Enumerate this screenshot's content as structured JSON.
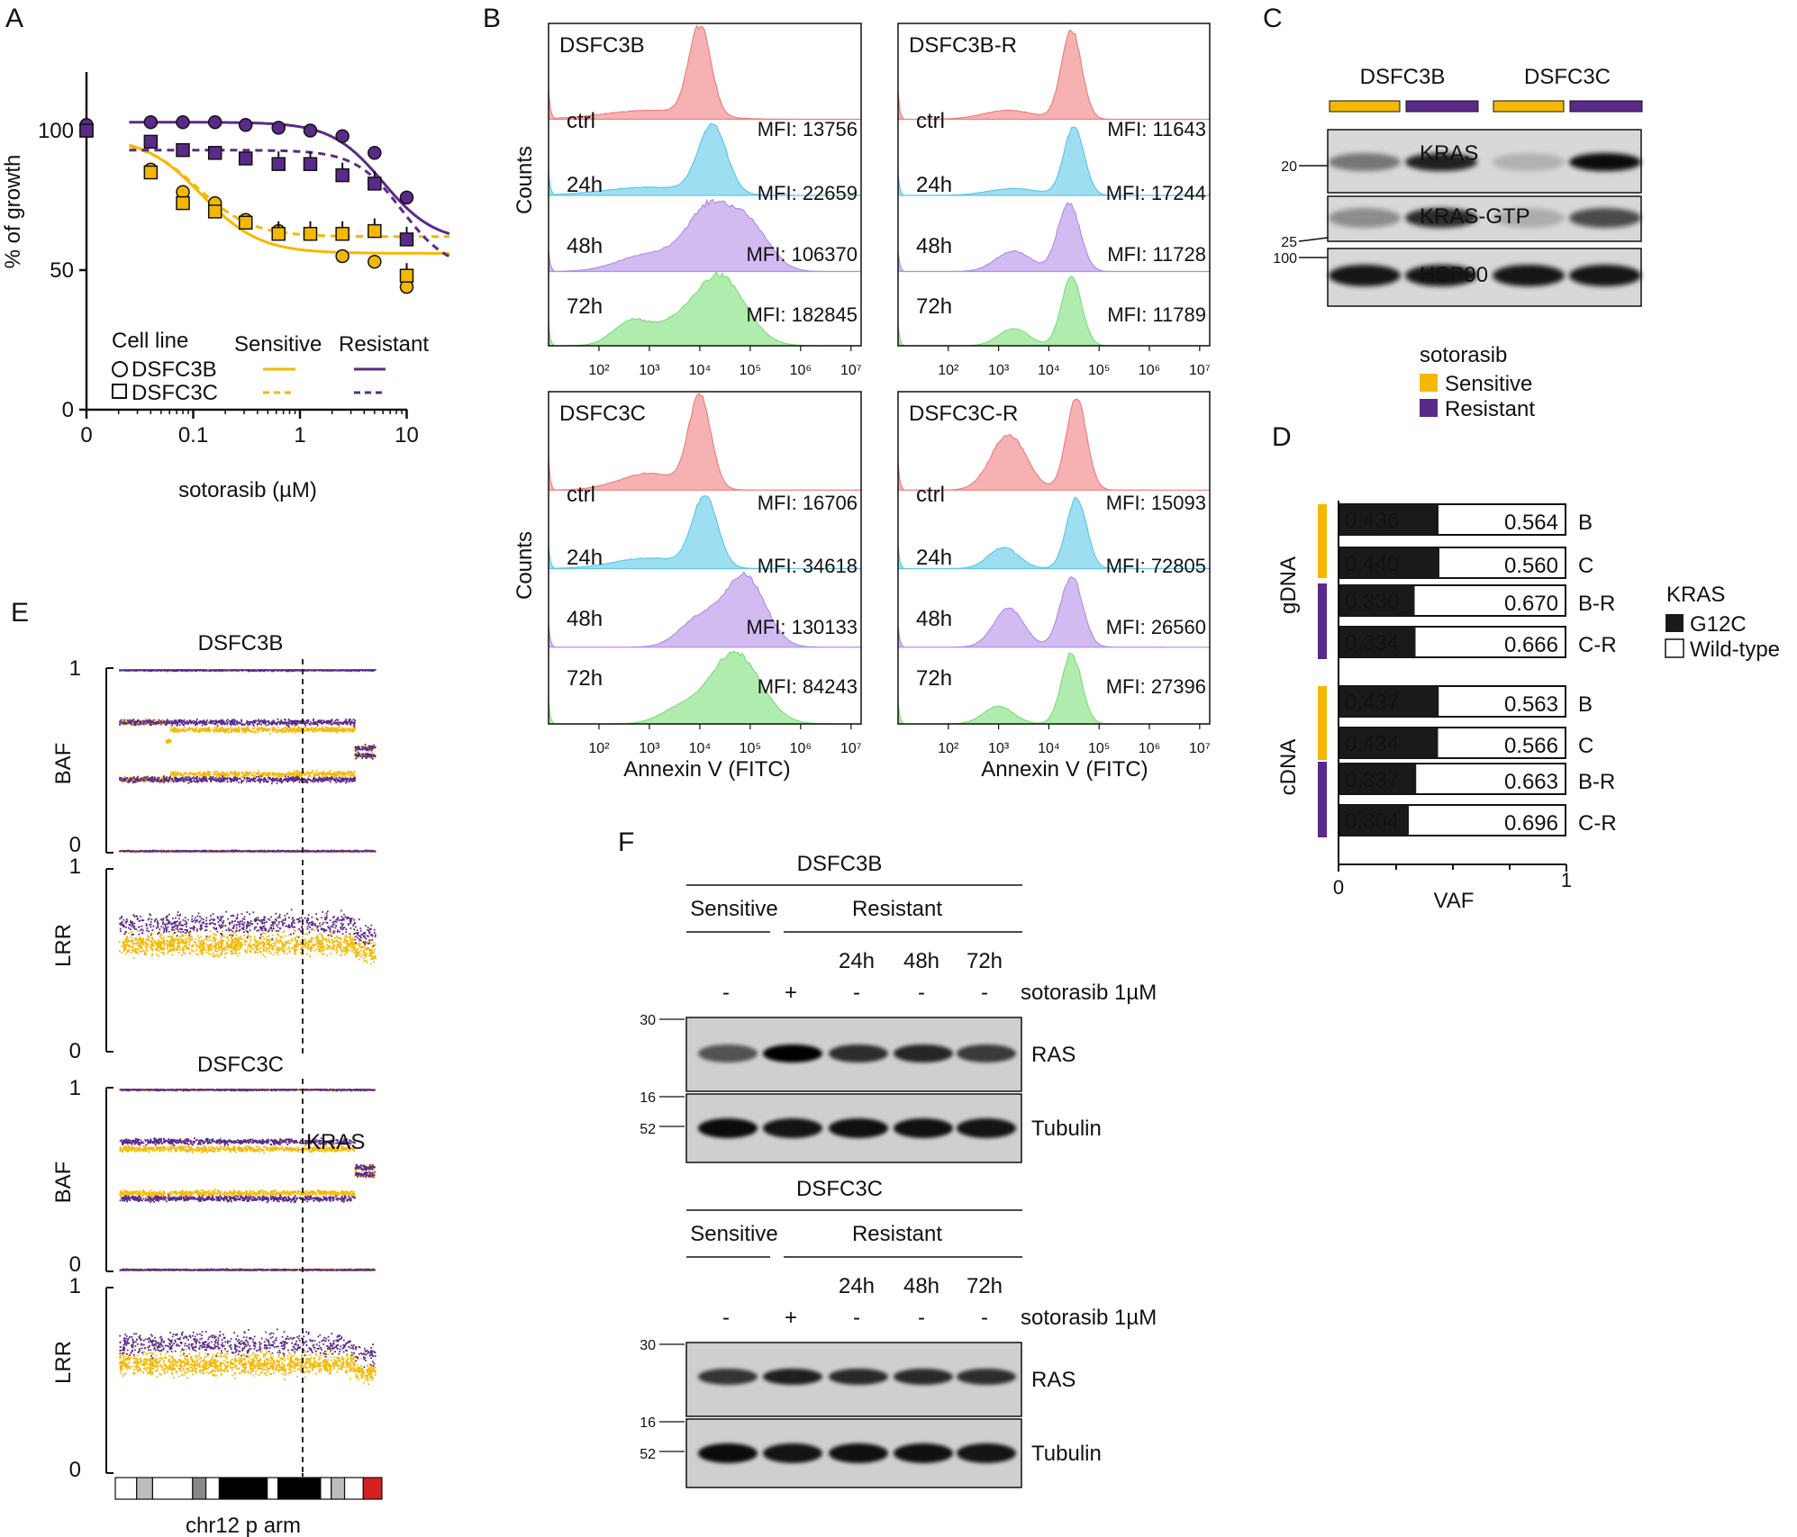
{
  "colors": {
    "sensitive": "#f5b800",
    "resistant": "#5a2a8a",
    "ctrl": "#f07f7f",
    "h24": "#5ec8e8",
    "h48": "#b48de8",
    "h72": "#7de07a"
  },
  "panelA": {
    "label": "A",
    "chart_data": {
      "type": "scatter",
      "title": "",
      "xlabel": "sotorasib  (µM)",
      "ylabel": "% of growth",
      "x_ticks": [
        "0",
        "0.1",
        "1",
        "10"
      ],
      "y_ticks": [
        "0",
        "50",
        "100"
      ],
      "ylim": [
        0,
        120
      ],
      "x": [
        0,
        0.04,
        0.08,
        0.16,
        0.31,
        0.63,
        1.25,
        2.5,
        5,
        10
      ],
      "series": [
        {
          "name": "DSFC3B Sensitive",
          "values": [
            100,
            86,
            78,
            74,
            68,
            64,
            63,
            55,
            53,
            44
          ]
        },
        {
          "name": "DSFC3C Sensitive",
          "values": [
            100,
            85,
            74,
            71,
            67,
            63,
            63,
            63,
            64,
            48
          ]
        },
        {
          "name": "DSFC3B Resistant",
          "values": [
            102,
            103,
            103,
            103,
            102,
            101,
            100,
            98,
            92,
            76
          ]
        },
        {
          "name": "DSFC3C Resistant",
          "values": [
            100,
            96,
            93,
            92,
            90,
            88,
            88,
            84,
            81,
            61
          ]
        }
      ]
    },
    "legend": {
      "header": "Cell line",
      "col_sensitive": "Sensitive",
      "col_resistant": "Resistant",
      "row1": "DSFC3B",
      "row2": "DSFC3C"
    }
  },
  "panelB": {
    "label": "B",
    "ylabel": "Counts",
    "xlabel": "Annexin V (FITC)",
    "x_ticks": [
      "10²",
      "10³",
      "10⁴",
      "10⁵",
      "10⁶",
      "10⁷"
    ],
    "rows": [
      "ctrl",
      "24h",
      "48h",
      "72h"
    ],
    "plots": [
      {
        "title": "DSFC3B",
        "mfi": [
          "MFI: 13756",
          "MFI: 22659",
          "MFI: 106370",
          "MFI: 182845"
        ]
      },
      {
        "title": "DSFC3B-R",
        "mfi": [
          "MFI: 11643",
          "MFI: 17244",
          "MFI: 11728",
          "MFI: 11789"
        ]
      },
      {
        "title": "DSFC3C",
        "mfi": [
          "MFI: 16706",
          "MFI: 34618",
          "MFI: 130133",
          "MFI: 84243"
        ]
      },
      {
        "title": "DSFC3C-R",
        "mfi": [
          "MFI: 15093",
          "MFI: 72805",
          "MFI: 26560",
          "MFI: 27396"
        ]
      }
    ]
  },
  "panelC": {
    "label": "C",
    "groups": [
      "DSFC3B",
      "DSFC3C"
    ],
    "bands": [
      "KRAS",
      "KRAS-GTP",
      "HSP90"
    ],
    "markers": [
      "20",
      "25",
      "100"
    ],
    "legend_title": "sotorasib",
    "legend": [
      "Sensitive",
      "Resistant"
    ]
  },
  "panelD": {
    "label": "D",
    "chart_data": {
      "type": "bar",
      "xlabel": "VAF",
      "x_ticks": [
        "0",
        "1"
      ],
      "groups": [
        {
          "name": "gDNA",
          "rows": [
            {
              "label": "B",
              "g12c": "0.436",
              "wt": "0.564"
            },
            {
              "label": "C",
              "g12c": "0.440",
              "wt": "0.560"
            },
            {
              "label": "B-R",
              "g12c": "0.330",
              "wt": "0.670"
            },
            {
              "label": "C-R",
              "g12c": "0.334",
              "wt": "0.666"
            }
          ]
        },
        {
          "name": "cDNA",
          "rows": [
            {
              "label": "B",
              "g12c": "0.437",
              "wt": "0.563"
            },
            {
              "label": "C",
              "g12c": "0.434",
              "wt": "0.566"
            },
            {
              "label": "B-R",
              "g12c": "0.337",
              "wt": "0.663"
            },
            {
              "label": "C-R",
              "g12c": "0.304",
              "wt": "0.696"
            }
          ]
        }
      ]
    },
    "legend_title": "KRAS",
    "legend": [
      "G12C",
      "Wild-type"
    ]
  },
  "panelE": {
    "label": "E",
    "title_b": "DSFC3B",
    "title_c": "DSFC3C",
    "baf": "BAF",
    "lrr": "LRR",
    "tick_1": "1",
    "tick_0": "0",
    "kras": "KRAS",
    "xlabel": "chr12 p arm"
  },
  "panelF": {
    "label": "F",
    "blocks": [
      {
        "title": "DSFC3B",
        "sensitive": "Sensitive",
        "resistant": "Resistant",
        "times": [
          "24h",
          "48h",
          "72h"
        ],
        "treat": [
          "-",
          "+",
          "-",
          "-",
          "-"
        ],
        "treat_label": "sotorasib 1µM",
        "bands": [
          "RAS",
          "Tubulin"
        ],
        "markers": [
          "30",
          "16",
          "52"
        ]
      },
      {
        "title": "DSFC3C",
        "sensitive": "Sensitive",
        "resistant": "Resistant",
        "times": [
          "24h",
          "48h",
          "72h"
        ],
        "treat": [
          "-",
          "+",
          "-",
          "-",
          "-"
        ],
        "treat_label": "sotorasib 1µM",
        "bands": [
          "RAS",
          "Tubulin"
        ],
        "markers": [
          "30",
          "16",
          "52"
        ]
      }
    ]
  }
}
